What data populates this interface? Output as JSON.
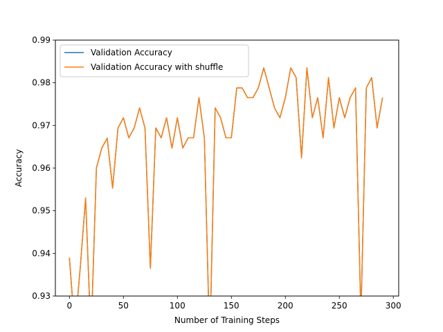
{
  "chart_data": {
    "type": "line",
    "title": "",
    "xlabel": "Number of Training Steps",
    "ylabel": "Accuracy",
    "xlim": [
      -13,
      305
    ],
    "ylim": [
      0.93,
      0.99
    ],
    "xticks": [
      0,
      50,
      100,
      150,
      200,
      250,
      300
    ],
    "yticks": [
      0.93,
      0.94,
      0.95,
      0.96,
      0.97,
      0.98,
      0.99
    ],
    "xtick_labels": [
      "0",
      "50",
      "100",
      "150",
      "200",
      "250",
      "300"
    ],
    "ytick_labels": [
      "0.93",
      "0.94",
      "0.95",
      "0.96",
      "0.97",
      "0.98",
      "0.99"
    ],
    "grid": false,
    "legend_position": "upper-left",
    "x": [
      0,
      5,
      10,
      15,
      20,
      25,
      30,
      35,
      40,
      45,
      50,
      55,
      60,
      65,
      70,
      75,
      80,
      85,
      90,
      95,
      100,
      105,
      110,
      115,
      120,
      125,
      130,
      135,
      140,
      145,
      150,
      155,
      160,
      165,
      170,
      175,
      180,
      185,
      190,
      195,
      200,
      205,
      210,
      215,
      220,
      225,
      230,
      235,
      240,
      245,
      250,
      255,
      260,
      265,
      270,
      275,
      280,
      285,
      290
    ],
    "series": [
      {
        "name": "Validation Accuracy",
        "color": "#1f77b4",
        "values": [
          0.939,
          0.922,
          0.9365,
          0.953,
          0.92,
          0.96,
          0.9647,
          0.967,
          0.9553,
          0.9694,
          0.9718,
          0.9671,
          0.9694,
          0.9741,
          0.9694,
          0.9365,
          0.9694,
          0.9671,
          0.9718,
          0.9647,
          0.9718,
          0.9647,
          0.9671,
          0.9671,
          0.9765,
          0.9671,
          0.918,
          0.9741,
          0.9718,
          0.9671,
          0.9671,
          0.9788,
          0.9788,
          0.9765,
          0.9765,
          0.9788,
          0.9835,
          0.9788,
          0.9741,
          0.9718,
          0.9765,
          0.9835,
          0.9812,
          0.9624,
          0.9835,
          0.9718,
          0.9765,
          0.9671,
          0.9812,
          0.9694,
          0.9765,
          0.9718,
          0.9765,
          0.9788,
          0.925,
          0.9788,
          0.9812,
          0.9694,
          0.9765
        ]
      },
      {
        "name": "Validation Accuracy with shuffle",
        "color": "#ff7f0e",
        "values": [
          0.939,
          0.922,
          0.9365,
          0.953,
          0.92,
          0.96,
          0.9647,
          0.967,
          0.9553,
          0.9694,
          0.9718,
          0.9671,
          0.9694,
          0.9741,
          0.9694,
          0.9365,
          0.9694,
          0.9671,
          0.9718,
          0.9647,
          0.9718,
          0.9647,
          0.9671,
          0.9671,
          0.9765,
          0.9671,
          0.918,
          0.9741,
          0.9718,
          0.9671,
          0.9671,
          0.9788,
          0.9788,
          0.9765,
          0.9765,
          0.9788,
          0.9835,
          0.9788,
          0.9741,
          0.9718,
          0.9765,
          0.9835,
          0.9812,
          0.9624,
          0.9835,
          0.9718,
          0.9765,
          0.9671,
          0.9812,
          0.9694,
          0.9765,
          0.9718,
          0.9765,
          0.9788,
          0.925,
          0.9788,
          0.9812,
          0.9694,
          0.9765
        ]
      }
    ]
  }
}
